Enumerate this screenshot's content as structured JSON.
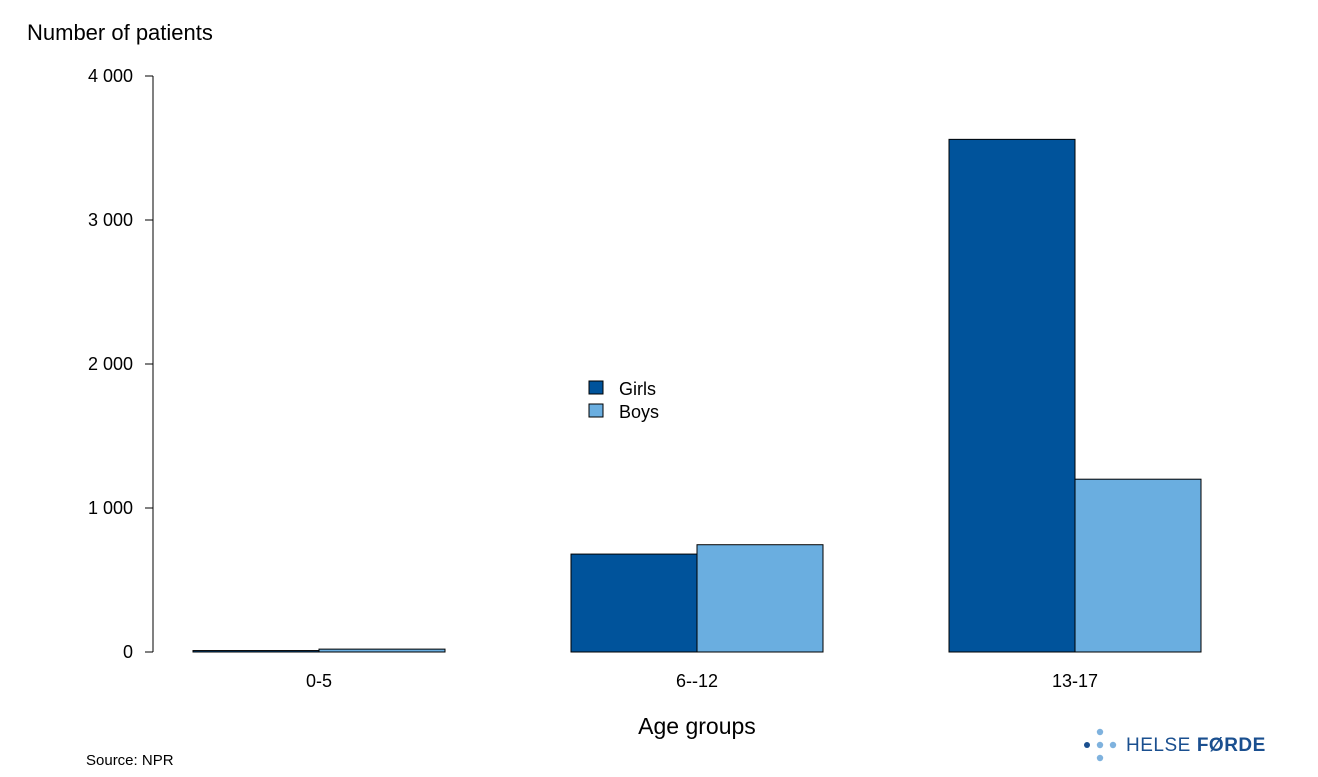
{
  "chart_data": {
    "type": "bar",
    "title": "",
    "ylabel": "Number of patients",
    "xlabel": "Age groups",
    "categories": [
      "0-5",
      "6--12",
      "13-17"
    ],
    "series": [
      {
        "name": "Girls",
        "color": "#00539b",
        "values": [
          10,
          680,
          3560
        ]
      },
      {
        "name": "Boys",
        "color": "#6aaee0",
        "values": [
          20,
          745,
          1200
        ]
      }
    ],
    "ylim": [
      0,
      4000
    ],
    "yticks": [
      0,
      1000,
      2000,
      3000,
      4000
    ],
    "ytick_labels": [
      "0",
      "1 000",
      "2 000",
      "3 000",
      "4 000"
    ],
    "grid": false,
    "legend_position": "center"
  },
  "footer": {
    "source": "Source: NPR"
  },
  "logo": {
    "text_light": "HELSE",
    "text_bold": "FØRDE",
    "color": "#1a4f8f"
  }
}
